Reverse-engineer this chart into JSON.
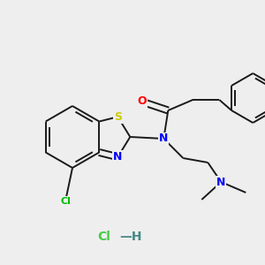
{
  "background_color": "#eeeeee",
  "bond_color": "#1a1a1a",
  "bond_width": 1.4,
  "atom_colors": {
    "N": "#0000ff",
    "O": "#ff0000",
    "S": "#cccc00",
    "Cl_organic": "#00bb00",
    "Cl_hcl": "#44cc44",
    "H_hcl": "#448888",
    "C": "#1a1a1a"
  },
  "font_size": 9
}
